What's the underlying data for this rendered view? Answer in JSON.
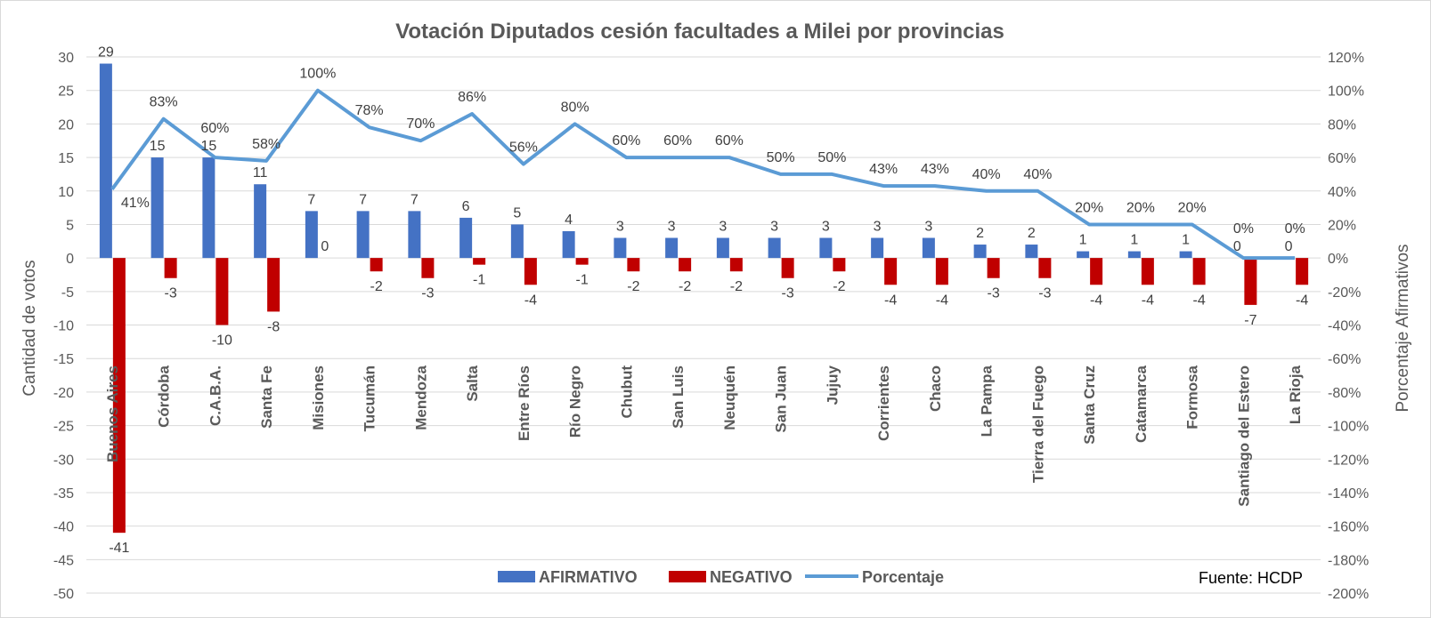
{
  "chart_data": {
    "type": "bar",
    "title": "Votación Diputados cesión facultades a Milei por provincias",
    "ylabel": "Cantidad de votos",
    "y2label": "Porcentaje Afirmativos",
    "ylim": [
      -50,
      30
    ],
    "y2lim": [
      -200,
      120
    ],
    "yticks": [
      30,
      25,
      20,
      15,
      10,
      5,
      0,
      -5,
      -10,
      -15,
      -20,
      -25,
      -30,
      -35,
      -40,
      -45,
      -50
    ],
    "y2ticks": [
      "120%",
      "100%",
      "80%",
      "60%",
      "40%",
      "20%",
      "0%",
      "-20%",
      "-40%",
      "-60%",
      "-80%",
      "-100%",
      "-120%",
      "-140%",
      "-160%",
      "-180%",
      "-200%"
    ],
    "grid": true,
    "legend_position": "bottom",
    "source": "Fuente: HCDP",
    "categories": [
      "Buenos Aires",
      "Córdoba",
      "C.A.B.A.",
      "Santa Fe",
      "Misiones",
      "Tucumán",
      "Mendoza",
      "Salta",
      "Entre Ríos",
      "Río Negro",
      "Chubut",
      "San Luis",
      "Neuquén",
      "San Juan",
      "Jujuy",
      "Corrientes",
      "Chaco",
      "La Pampa",
      "Tierra del Fuego",
      "Santa Cruz",
      "Catamarca",
      "Formosa",
      "Santiago del Estero",
      "La Rioja"
    ],
    "series": [
      {
        "name": "AFIRMATIVO",
        "type": "bar",
        "axis": "left",
        "color": "#4472c4",
        "values": [
          29,
          15,
          15,
          11,
          7,
          7,
          7,
          6,
          5,
          4,
          3,
          3,
          3,
          3,
          3,
          3,
          3,
          2,
          2,
          1,
          1,
          1,
          0,
          0
        ]
      },
      {
        "name": "NEGATIVO",
        "type": "bar",
        "axis": "left",
        "color": "#c00000",
        "values": [
          -41,
          -3,
          -10,
          -8,
          0,
          -2,
          -3,
          -1,
          -4,
          -1,
          -2,
          -2,
          -2,
          -3,
          -2,
          -4,
          -4,
          -3,
          -3,
          -4,
          -4,
          -4,
          -7,
          -4
        ]
      },
      {
        "name": "Porcentaje",
        "type": "line",
        "axis": "right",
        "color": "#5b9bd5",
        "values": [
          41,
          83,
          60,
          58,
          100,
          78,
          70,
          86,
          56,
          80,
          60,
          60,
          60,
          50,
          50,
          43,
          43,
          40,
          40,
          20,
          20,
          20,
          0,
          0
        ]
      }
    ]
  }
}
